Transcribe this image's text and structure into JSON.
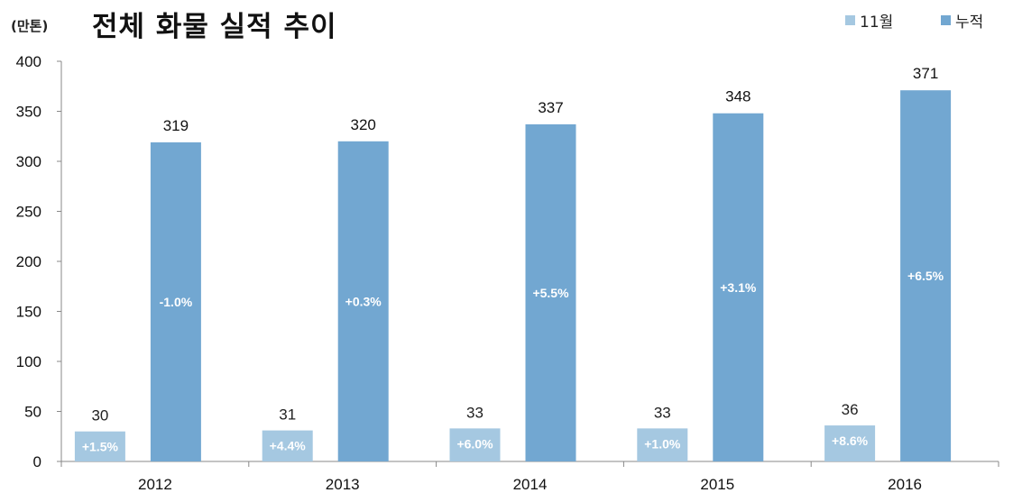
{
  "chart_data": {
    "type": "bar",
    "title": "전체 화물 실적 추이",
    "unit_label": "(만톤)",
    "categories": [
      "2012",
      "2013",
      "2014",
      "2015",
      "2016"
    ],
    "series": [
      {
        "name": "11월",
        "values": [
          30,
          31,
          33,
          33,
          36
        ],
        "color": "#a5c8e1",
        "growth_labels": [
          "+1.5%",
          "+4.4%",
          "+6.0%",
          "+1.0%",
          "+8.6%"
        ]
      },
      {
        "name": "누적",
        "values": [
          319,
          320,
          337,
          348,
          371
        ],
        "color": "#72a7d1",
        "growth_labels": [
          "-1.0%",
          "+0.3%",
          "+5.5%",
          "+3.1%",
          "+6.5%"
        ]
      }
    ],
    "ylim": [
      0,
      400
    ],
    "yticks": [
      0,
      50,
      100,
      150,
      200,
      250,
      300,
      350,
      400
    ],
    "grid": false,
    "legend_position": "top-right"
  }
}
